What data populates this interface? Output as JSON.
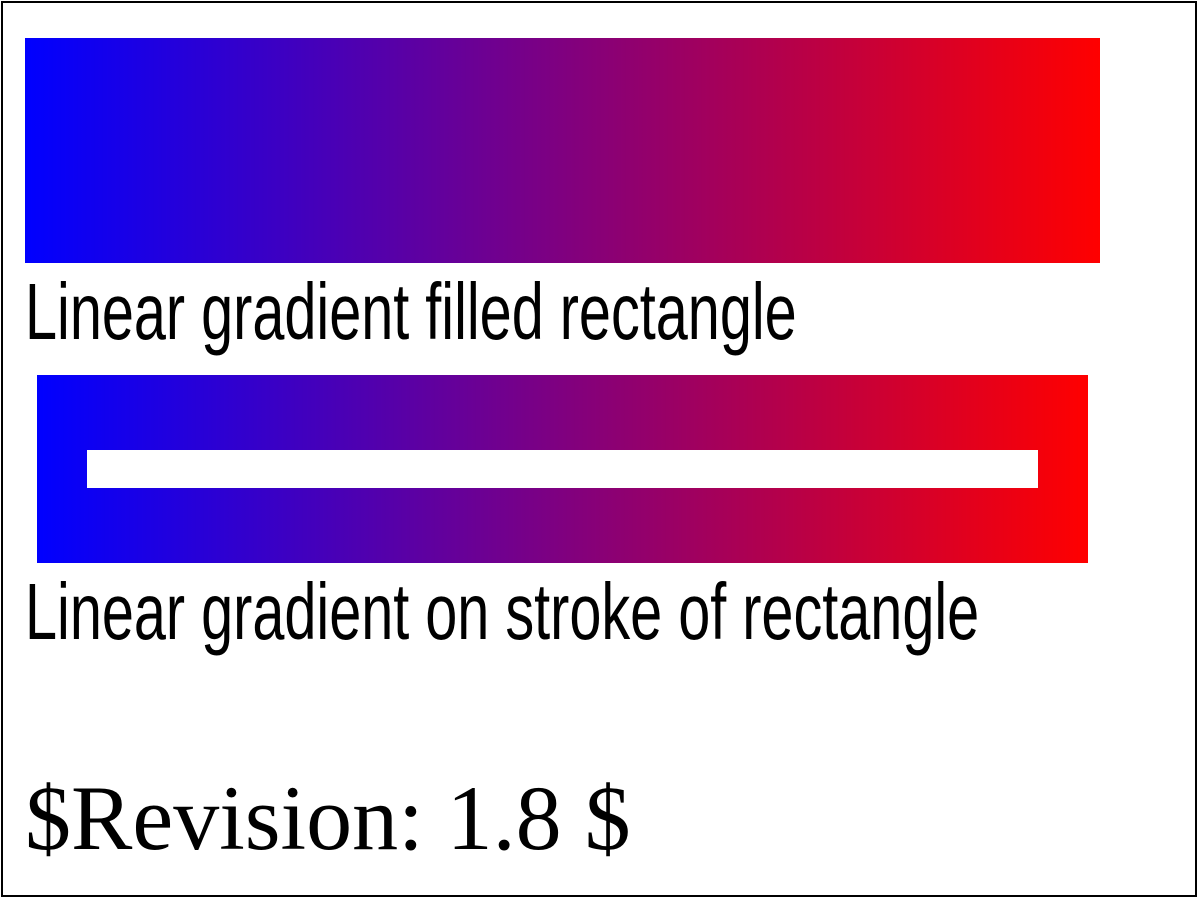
{
  "gradient": {
    "start_color": "#0000ff",
    "end_color": "#ff0000"
  },
  "captions": {
    "filled": "Linear gradient filled rectangle",
    "stroke": "Linear gradient on stroke of rectangle"
  },
  "revision": "$Revision: 1.8 $"
}
